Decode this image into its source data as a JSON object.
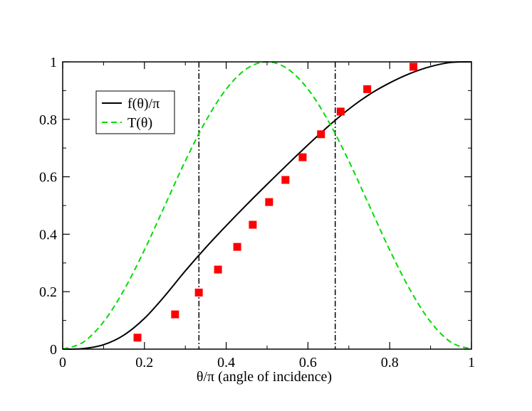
{
  "chart_data": {
    "type": "line",
    "title": "",
    "xlabel": "θ/π (angle of incidence)",
    "ylabel": "",
    "xlim": [
      0,
      1
    ],
    "ylim": [
      0,
      1
    ],
    "x_ticks": [
      0,
      0.2,
      0.4,
      0.6,
      0.8,
      1
    ],
    "y_ticks": [
      0,
      0.2,
      0.4,
      0.6,
      0.8,
      1
    ],
    "x_tick_labels": [
      "0",
      "0.2",
      "0.4",
      "0.6",
      "0.8",
      "1"
    ],
    "y_tick_labels": [
      "0",
      "0.2",
      "0.4",
      "0.6",
      "0.8",
      "1"
    ],
    "legend_position": "top-left",
    "series": [
      {
        "name": "f(θ)/π",
        "style": "solid",
        "color": "#000000",
        "x": [
          0,
          0.05,
          0.1,
          0.15,
          0.2,
          0.25,
          0.3,
          0.35,
          0.4,
          0.45,
          0.5,
          0.55,
          0.6,
          0.65,
          0.7,
          0.75,
          0.8,
          0.85,
          0.9,
          0.95,
          1
        ],
        "y": [
          0,
          0.002,
          0.0153,
          0.0491,
          0.107,
          0.1856,
          0.2724,
          0.3536,
          0.4297,
          0.5027,
          0.5736,
          0.6431,
          0.7111,
          0.7761,
          0.8354,
          0.8862,
          0.9268,
          0.9596,
          0.9838,
          0.998,
          1
        ]
      },
      {
        "name": "T(θ)",
        "style": "dashed",
        "color": "#00dd00",
        "x": [
          0,
          0.05,
          0.1,
          0.15,
          0.2,
          0.25,
          0.3,
          0.35,
          0.4,
          0.45,
          0.5,
          0.55,
          0.6,
          0.65,
          0.7,
          0.75,
          0.8,
          0.85,
          0.9,
          0.95,
          1
        ],
        "y": [
          0,
          0.024,
          0.095,
          0.206,
          0.345,
          0.5,
          0.655,
          0.794,
          0.905,
          0.976,
          1.0,
          0.976,
          0.905,
          0.794,
          0.655,
          0.5,
          0.345,
          0.206,
          0.095,
          0.024,
          0
        ]
      }
    ],
    "markers": {
      "name": "data points",
      "shape": "square",
      "color": "#ff0000",
      "points": [
        [
          0.183,
          0.04
        ],
        [
          0.275,
          0.121
        ],
        [
          0.333,
          0.197
        ],
        [
          0.38,
          0.277
        ],
        [
          0.427,
          0.356
        ],
        [
          0.465,
          0.433
        ],
        [
          0.505,
          0.512
        ],
        [
          0.545,
          0.589
        ],
        [
          0.587,
          0.668
        ],
        [
          0.632,
          0.748
        ],
        [
          0.68,
          0.827
        ],
        [
          0.745,
          0.905
        ],
        [
          0.858,
          0.983
        ]
      ]
    },
    "reference_lines": [
      {
        "axis": "x",
        "value": 0.3333,
        "style": "dash-dot",
        "color": "#000000"
      },
      {
        "axis": "x",
        "value": 0.6667,
        "style": "dash-dot",
        "color": "#000000"
      }
    ]
  }
}
